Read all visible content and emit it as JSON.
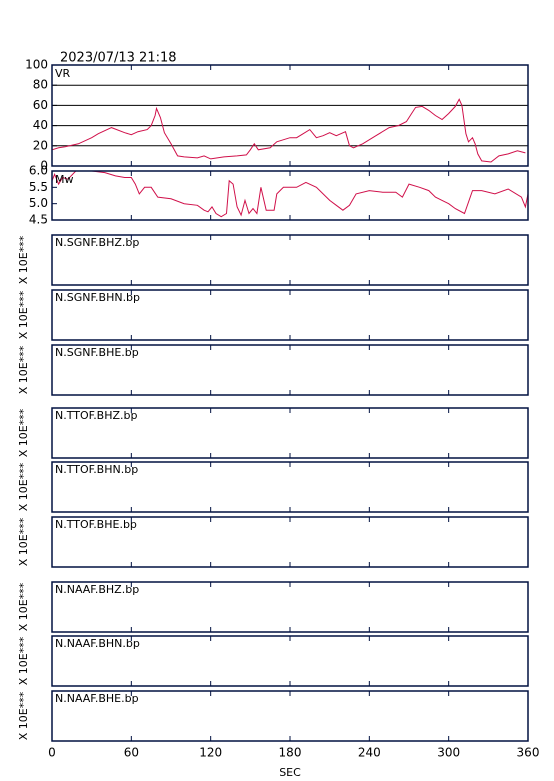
{
  "title": "2023/07/13 21:18",
  "x_axis": {
    "label": "SEC",
    "xlim": [
      0,
      360
    ],
    "xticks": [
      0,
      60,
      120,
      180,
      240,
      300,
      360
    ]
  },
  "chart_data": [
    {
      "type": "line",
      "ylabel": "VR",
      "color": "#d0104a",
      "grid": true,
      "ylim": [
        0,
        100
      ],
      "yticks": [
        0,
        20,
        40,
        60,
        80,
        100
      ],
      "x": [
        0,
        5,
        10,
        20,
        30,
        35,
        45,
        55,
        60,
        65,
        72,
        75,
        78,
        79,
        82,
        85,
        90,
        95,
        100,
        110,
        115,
        120,
        130,
        140,
        147,
        150,
        153,
        156,
        165,
        170,
        180,
        185,
        190,
        195,
        200,
        205,
        210,
        215,
        222,
        225,
        228,
        235,
        245,
        255,
        262,
        268,
        272,
        275,
        280,
        285,
        290,
        295,
        300,
        305,
        308,
        310,
        313,
        315,
        318,
        320,
        322,
        325,
        332,
        338,
        345,
        352,
        358
      ],
      "values": [
        16,
        18,
        19,
        22,
        28,
        32,
        38,
        33,
        31,
        34,
        36,
        40,
        50,
        57,
        48,
        33,
        22,
        10,
        9,
        8,
        10,
        7,
        9,
        10,
        11,
        16,
        22,
        16,
        18,
        24,
        28,
        28,
        32,
        36,
        28,
        30,
        33,
        30,
        34,
        20,
        18,
        22,
        30,
        38,
        40,
        44,
        52,
        58,
        59,
        55,
        50,
        46,
        52,
        59,
        66,
        60,
        32,
        24,
        28,
        22,
        12,
        5,
        4,
        10,
        12,
        15,
        13
      ]
    },
    {
      "type": "line",
      "ylabel": "Mw",
      "color": "#d0104a",
      "grid": false,
      "ylim": [
        4.5,
        6.0
      ],
      "yticks": [
        4.5,
        {
          "value": 5,
          "label": "5.0"
        },
        5.5,
        {
          "value": 6,
          "label": "6.0"
        }
      ],
      "x": [
        0,
        2,
        5,
        8,
        12,
        18,
        30,
        40,
        48,
        55,
        60,
        63,
        66,
        70,
        75,
        80,
        90,
        100,
        110,
        115,
        118,
        121,
        124,
        128,
        132,
        134,
        137,
        140,
        143,
        146,
        149,
        152,
        155,
        158,
        162,
        168,
        170,
        175,
        185,
        192,
        200,
        205,
        210,
        215,
        220,
        225,
        230,
        240,
        250,
        260,
        265,
        270,
        278,
        285,
        290,
        295,
        300,
        305,
        312,
        318,
        325,
        335,
        345,
        355,
        358,
        360
      ],
      "values": [
        5.7,
        5.9,
        5.6,
        5.8,
        5.75,
        6.0,
        6.0,
        5.95,
        5.85,
        5.8,
        5.8,
        5.6,
        5.3,
        5.5,
        5.5,
        5.2,
        5.15,
        5.0,
        4.95,
        4.8,
        4.75,
        4.9,
        4.7,
        4.6,
        4.7,
        5.7,
        5.6,
        4.9,
        4.65,
        5.1,
        4.7,
        4.85,
        4.7,
        5.5,
        4.8,
        4.8,
        5.3,
        5.5,
        5.5,
        5.65,
        5.5,
        5.3,
        5.1,
        4.95,
        4.8,
        4.95,
        5.3,
        5.4,
        5.35,
        5.35,
        5.2,
        5.6,
        5.5,
        5.4,
        5.2,
        5.1,
        5.0,
        4.85,
        4.7,
        5.4,
        5.4,
        5.3,
        5.45,
        5.2,
        4.9,
        5.3
      ]
    }
  ],
  "traces": [
    {
      "label": "N.SGNF.BHZ.bp",
      "ylabel": "X 10E***"
    },
    {
      "label": "N.SGNF.BHN.bp",
      "ylabel": "X 10E***"
    },
    {
      "label": "N.SGNF.BHE.bp",
      "ylabel": "X 10E***"
    },
    {
      "label": "N.TTOF.BHZ.bp",
      "ylabel": "X 10E***"
    },
    {
      "label": "N.TTOF.BHN.bp",
      "ylabel": "X 10E***"
    },
    {
      "label": "N.TTOF.BHE.bp",
      "ylabel": "X 10E***"
    },
    {
      "label": "N.NAAF.BHZ.bp",
      "ylabel": "X 10E***"
    },
    {
      "label": "N.NAAF.BHN.bp",
      "ylabel": "X 10E***"
    },
    {
      "label": "N.NAAF.BHE.bp",
      "ylabel": "X 10E***"
    }
  ]
}
